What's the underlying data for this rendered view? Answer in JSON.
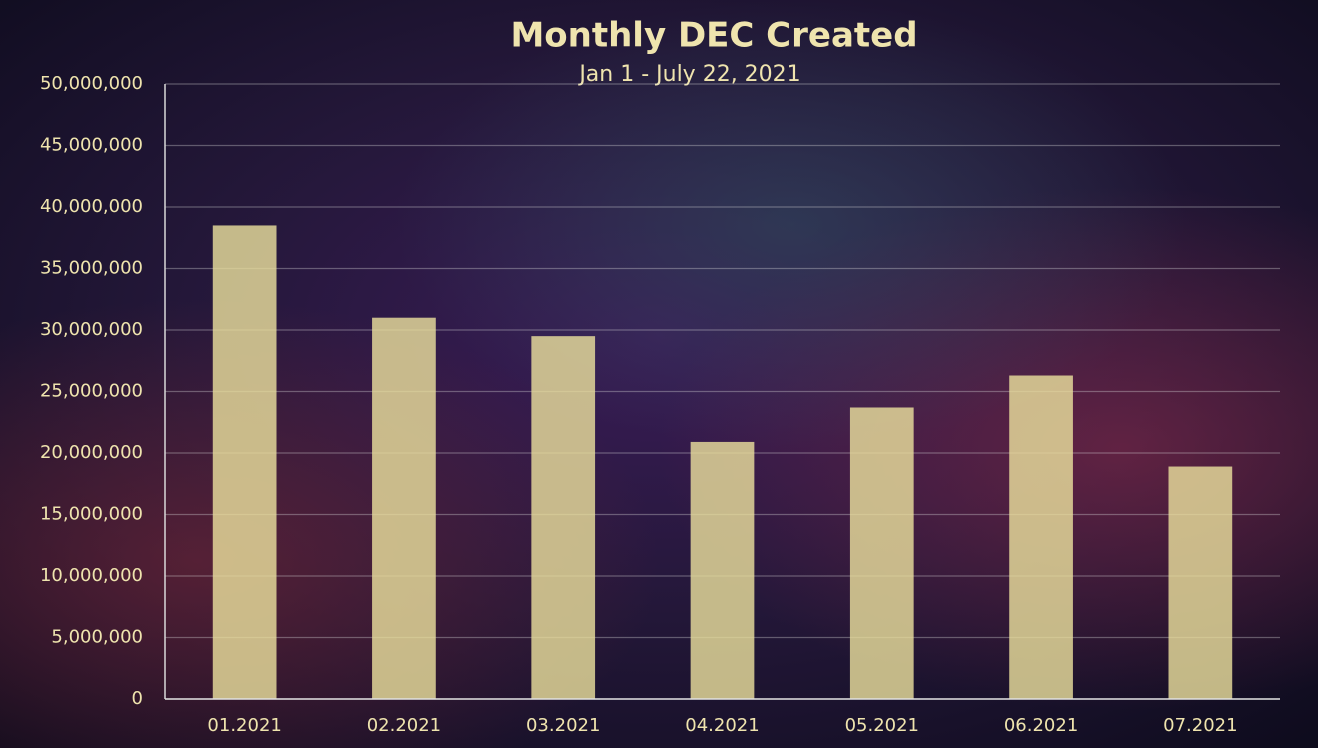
{
  "chart_data": {
    "type": "bar",
    "title": "Monthly DEC Created",
    "subtitle": "Jan 1 - July 22, 2021",
    "categories": [
      "01.2021",
      "02.2021",
      "03.2021",
      "04.2021",
      "05.2021",
      "06.2021",
      "07.2021"
    ],
    "values": [
      38500000,
      31000000,
      29500000,
      20900000,
      23700000,
      26300000,
      18900000
    ],
    "color": "#e9de9c",
    "ylim": [
      0,
      50000000
    ],
    "yticks": [
      0,
      {
        "value": 5000000,
        "label": "5,000,000"
      },
      {
        "value": 10000000,
        "label": "10,000,000"
      },
      {
        "value": 15000000,
        "label": "15,000,000"
      },
      {
        "value": 20000000,
        "label": "20,000,000"
      },
      {
        "value": 25000000,
        "label": "25,000,000"
      },
      {
        "value": 30000000,
        "label": "30,000,000"
      },
      {
        "value": 35000000,
        "label": "35,000,000"
      },
      {
        "value": 40000000,
        "label": "40,000,000"
      },
      {
        "value": 45000000,
        "label": "45,000,000"
      },
      {
        "value": 50000000,
        "label": "50,000,000"
      }
    ],
    "grid": true
  }
}
